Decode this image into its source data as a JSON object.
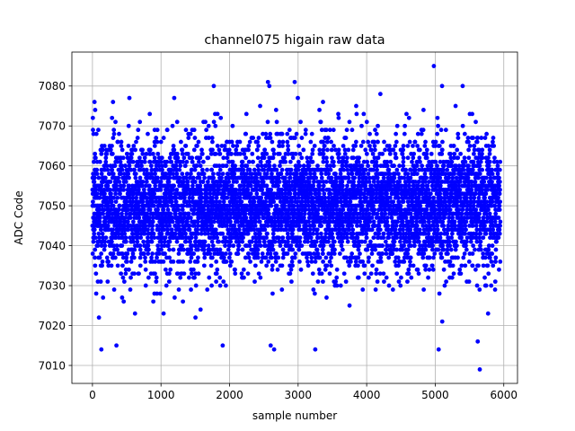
{
  "chart_data": {
    "type": "scatter",
    "title": "channel075 higain raw data",
    "xlabel": "sample number",
    "ylabel": "ADC Code",
    "xlim": [
      -300,
      6200
    ],
    "ylim": [
      7005.5,
      7088.5
    ],
    "xticks": [
      0,
      1000,
      2000,
      3000,
      4000,
      5000,
      6000
    ],
    "yticks": [
      7010,
      7020,
      7030,
      7040,
      7050,
      7060,
      7070,
      7080
    ],
    "grid": true,
    "marker_color": "#0000ff",
    "sample_count": 5950,
    "center": 7050,
    "spread": 10,
    "outliers": [
      {
        "x": 130,
        "y": 7014
      },
      {
        "x": 300,
        "y": 7076
      },
      {
        "x": 350,
        "y": 7015
      },
      {
        "x": 1770,
        "y": 7080
      },
      {
        "x": 1900,
        "y": 7015
      },
      {
        "x": 2560,
        "y": 7081
      },
      {
        "x": 2580,
        "y": 7080
      },
      {
        "x": 2600,
        "y": 7015
      },
      {
        "x": 2650,
        "y": 7014
      },
      {
        "x": 2950,
        "y": 7081
      },
      {
        "x": 3250,
        "y": 7014
      },
      {
        "x": 4200,
        "y": 7078
      },
      {
        "x": 4980,
        "y": 7085
      },
      {
        "x": 5050,
        "y": 7014
      },
      {
        "x": 5100,
        "y": 7080
      },
      {
        "x": 5400,
        "y": 7080
      },
      {
        "x": 5650,
        "y": 7009
      },
      {
        "x": 5620,
        "y": 7016
      },
      {
        "x": 30,
        "y": 7076
      },
      {
        "x": 40,
        "y": 7074
      }
    ]
  }
}
